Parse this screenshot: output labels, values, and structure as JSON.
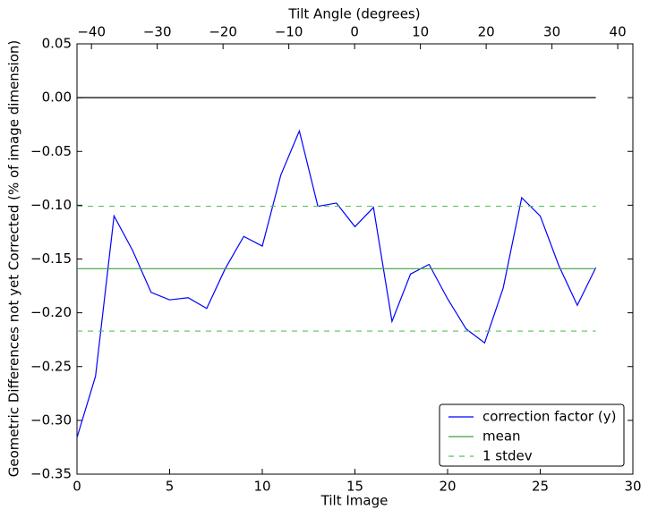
{
  "chart_data": {
    "type": "line",
    "xlabel": "Tilt Image",
    "ylabel": "Geometric Differences not yet Corrected (% of image dimension)",
    "x2label": "Tilt Angle (degrees)",
    "x": [
      0,
      1,
      2,
      3,
      4,
      5,
      6,
      7,
      8,
      9,
      10,
      11,
      12,
      13,
      14,
      15,
      16,
      17,
      18,
      19,
      20,
      21,
      22,
      23,
      24,
      25,
      26,
      27,
      28
    ],
    "series": [
      {
        "name": "correction factor (y)",
        "color": "#0000ff",
        "style": "solid",
        "values": [
          -0.316,
          -0.259,
          -0.11,
          -0.142,
          -0.181,
          -0.188,
          -0.186,
          -0.196,
          -0.159,
          -0.129,
          -0.138,
          -0.072,
          -0.031,
          -0.101,
          -0.098,
          -0.12,
          -0.102,
          -0.208,
          -0.164,
          -0.155,
          -0.187,
          -0.215,
          -0.228,
          -0.177,
          -0.093,
          -0.11,
          -0.156,
          -0.193,
          -0.158
        ]
      },
      {
        "name": "mean",
        "color": "#3c9f3c",
        "style": "solid",
        "levels": [
          -0.159
        ],
        "xrange": [
          0,
          28
        ]
      },
      {
        "name": "1 stdev",
        "color": "#5cbf5c",
        "style": "dashed",
        "levels": [
          -0.101,
          -0.217
        ],
        "xrange": [
          0,
          28
        ]
      }
    ],
    "reference_lines": [
      {
        "value": 0,
        "color": "#000000",
        "xrange": [
          0,
          28
        ]
      }
    ],
    "xlim": [
      0,
      30
    ],
    "xticks": [
      0,
      5,
      10,
      15,
      20,
      25,
      30
    ],
    "x2lim": [
      -42.2,
      42.3
    ],
    "x2ticks": [
      {
        "value": -40,
        "label": "−40"
      },
      {
        "value": -30,
        "label": "−30"
      },
      {
        "value": -20,
        "label": "−20"
      },
      {
        "value": -10,
        "label": "−10"
      },
      0,
      10,
      20,
      30,
      40
    ],
    "ylim": [
      -0.35,
      0.05
    ],
    "yticks": [
      {
        "value": -0.35,
        "label": "−0.35"
      },
      {
        "value": -0.3,
        "label": "−0.30"
      },
      {
        "value": -0.25,
        "label": "−0.25"
      },
      {
        "value": -0.2,
        "label": "−0.20"
      },
      {
        "value": -0.15,
        "label": "−0.15"
      },
      {
        "value": -0.1,
        "label": "−0.10"
      },
      {
        "value": -0.05,
        "label": "−0.05"
      },
      {
        "value": 0,
        "label": "0.00"
      },
      {
        "value": 0.05,
        "label": "0.05"
      }
    ],
    "legend": "lower right",
    "grid": false
  }
}
